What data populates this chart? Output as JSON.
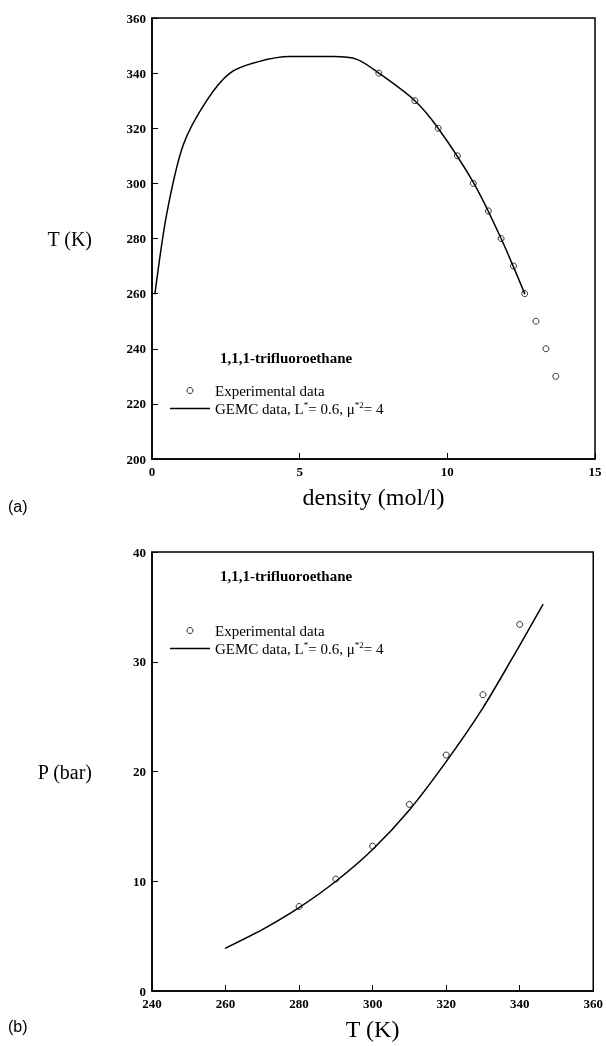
{
  "chart_data": [
    {
      "type": "line",
      "xlabel": "density (mol/l)",
      "ylabel": "T (K)",
      "xlim": [
        0,
        15
      ],
      "xticks": [
        0,
        5,
        10,
        15
      ],
      "ylim": [
        200,
        360
      ],
      "yticks": [
        200,
        220,
        240,
        260,
        280,
        300,
        320,
        340,
        360
      ],
      "grid": false,
      "legend": "bottom left",
      "annotations": [
        "1,1,1-trifluoroethane",
        "(a)"
      ],
      "series": [
        {
          "name": "Experimental data",
          "type": "scatter",
          "marker": "circle",
          "color": "#000000",
          "x": [
            7.68,
            8.9,
            9.69,
            10.34,
            10.88,
            11.39,
            11.82,
            12.24,
            12.62,
            13.0,
            13.34,
            13.67
          ],
          "values": [
            340,
            330,
            320,
            310,
            300,
            290,
            280,
            270,
            260,
            250,
            240,
            230
          ]
        },
        {
          "name": "GEMC data, L$^{*}$= 0.6, μ$^{*2}$= 4",
          "marker": "none",
          "line_style": "solid",
          "color": "#000000",
          "x": [
            0.1,
            0.5,
            1.06,
            1.85,
            2.64,
            3.55,
            4.67,
            6.14,
            6.94,
            7.68,
            8.9,
            9.69,
            10.9,
            11.82,
            12.62
          ],
          "values": [
            260,
            289,
            314,
            330,
            340,
            344,
            346,
            346,
            345,
            340,
            330,
            320,
            300,
            280,
            260
          ]
        }
      ]
    },
    {
      "type": "line",
      "xlabel": "T (K)",
      "ylabel": "P (bar)",
      "xlim": [
        240,
        360
      ],
      "xticks": [
        240,
        260,
        280,
        300,
        320,
        340,
        360
      ],
      "ylim": [
        0,
        40
      ],
      "yticks": [
        0,
        10,
        20,
        30,
        40
      ],
      "grid": false,
      "legend": "top left",
      "annotations": [
        "1,1,1-trifluoroethane",
        "(b)"
      ],
      "series": [
        {
          "name": "Experimental data",
          "type": "scatter",
          "marker": "circle",
          "color": "#000000",
          "x": [
            280,
            290,
            300,
            310,
            320,
            330,
            340
          ],
          "values": [
            7.7,
            10.2,
            13.2,
            17.0,
            21.5,
            27.0,
            33.4
          ]
        },
        {
          "name": "GEMC data, L$^{*}$= 0.6, μ$^{*2}$= 4",
          "marker": "none",
          "line_style": "solid",
          "color": "#000000",
          "x": [
            260,
            270,
            280,
            290,
            300,
            310,
            320,
            330,
            340,
            346.3
          ],
          "values": [
            3.9,
            5.6,
            7.6,
            10.0,
            12.9,
            16.5,
            20.9,
            25.8,
            31.5,
            35.2
          ]
        }
      ]
    }
  ]
}
